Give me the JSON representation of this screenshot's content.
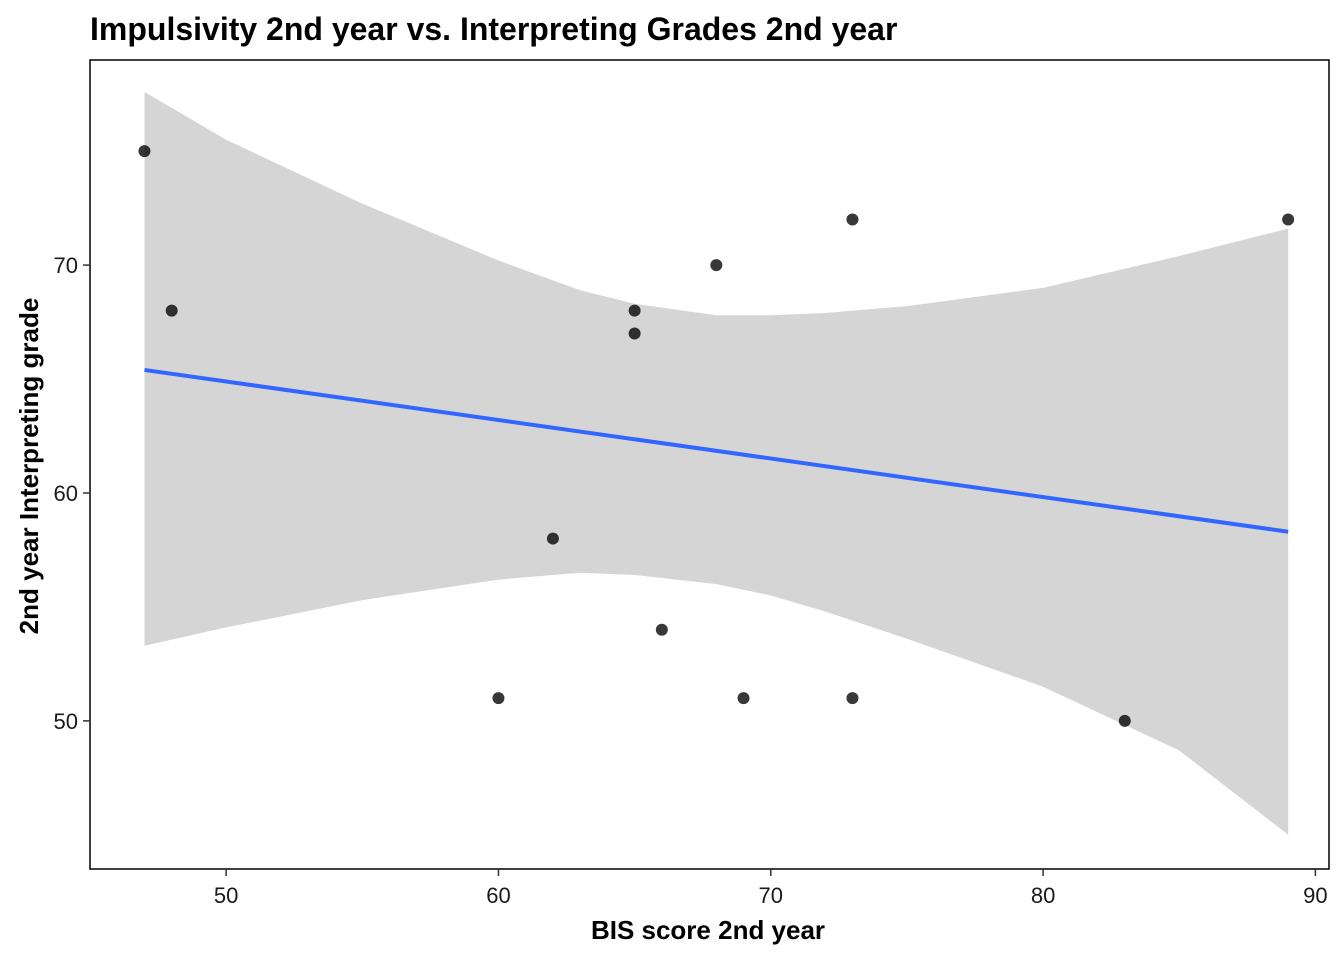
{
  "chart_data": {
    "type": "scatter",
    "title": "Impulsivity 2nd year vs. Interpreting Grades 2nd year",
    "xlabel": "BIS score 2nd year",
    "ylabel": "2nd year Interpreting grade",
    "xlim": [
      45,
      90.5
    ],
    "ylim": [
      43.5,
      79
    ],
    "xticks": [
      50,
      60,
      70,
      80,
      90
    ],
    "yticks": [
      50,
      60,
      70
    ],
    "grid": false,
    "legend": "none",
    "points": [
      {
        "x": 47,
        "y": 75
      },
      {
        "x": 48,
        "y": 68
      },
      {
        "x": 60,
        "y": 51
      },
      {
        "x": 62,
        "y": 58
      },
      {
        "x": 65,
        "y": 68
      },
      {
        "x": 65,
        "y": 67
      },
      {
        "x": 66,
        "y": 54
      },
      {
        "x": 68,
        "y": 70
      },
      {
        "x": 69,
        "y": 51
      },
      {
        "x": 73,
        "y": 72
      },
      {
        "x": 73,
        "y": 51
      },
      {
        "x": 83,
        "y": 50
      },
      {
        "x": 89,
        "y": 72
      }
    ],
    "trend_line": {
      "method": "linear regression",
      "x": [
        47,
        89
      ],
      "y": [
        65.4,
        58.3
      ],
      "color": "#3366FF"
    },
    "confidence_band": {
      "color": "#D5D5D5",
      "x": [
        47,
        50,
        55,
        60,
        63,
        65,
        68,
        70,
        72,
        75,
        80,
        85,
        89
      ],
      "upper": [
        77.6,
        75.5,
        72.7,
        70.2,
        68.9,
        68.3,
        67.8,
        67.8,
        67.9,
        68.2,
        69.0,
        70.4,
        71.6
      ],
      "lower": [
        53.3,
        54.1,
        55.3,
        56.2,
        56.5,
        56.4,
        56.0,
        55.5,
        54.8,
        53.6,
        51.5,
        48.7,
        45.0
      ]
    },
    "colors": {
      "point": "#000000",
      "axis": "#000000",
      "background": "#FFFFFF"
    }
  }
}
